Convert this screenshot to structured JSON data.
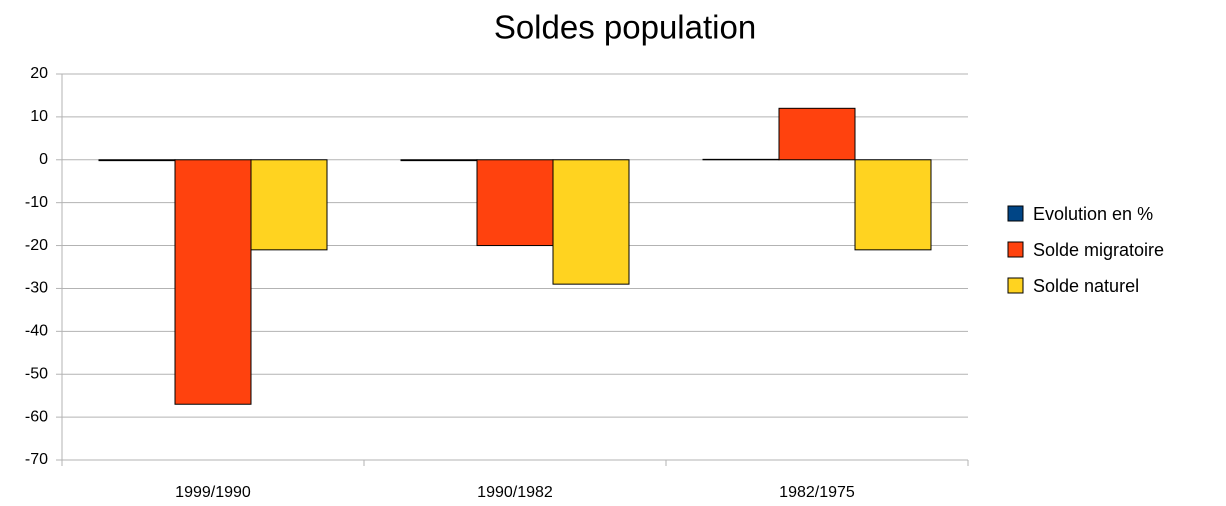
{
  "chart_data": {
    "type": "bar",
    "title": "Soldes population",
    "categories": [
      "1999/1990",
      "1990/1982",
      "1982/1975"
    ],
    "series": [
      {
        "name": "Evolution en %",
        "color": "#004586",
        "values": [
          -0.2,
          -0.2,
          0.1
        ]
      },
      {
        "name": "Solde migratoire",
        "color": "#ff420e",
        "values": [
          -57,
          -20,
          12
        ]
      },
      {
        "name": "Solde naturel",
        "color": "#ffd320",
        "values": [
          -21,
          -29,
          -21
        ]
      }
    ],
    "ylim": [
      -70,
      20
    ],
    "yticks": [
      -70,
      -60,
      -50,
      -40,
      -30,
      -20,
      -10,
      0,
      10,
      20
    ],
    "grid": true,
    "legend": "right"
  }
}
